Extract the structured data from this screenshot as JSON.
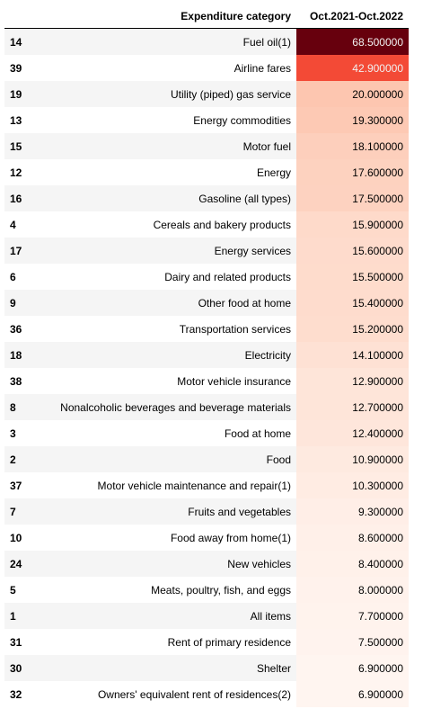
{
  "chart_data": {
    "type": "table",
    "columns": [
      "",
      "Expenditure category",
      "Oct.2021-Oct.2022"
    ],
    "rows": [
      {
        "index": "14",
        "category": "Fuel oil(1)",
        "value": "68.500000"
      },
      {
        "index": "39",
        "category": "Airline fares",
        "value": "42.900000"
      },
      {
        "index": "19",
        "category": "Utility (piped) gas service",
        "value": "20.000000"
      },
      {
        "index": "13",
        "category": "Energy commodities",
        "value": "19.300000"
      },
      {
        "index": "15",
        "category": "Motor fuel",
        "value": "18.100000"
      },
      {
        "index": "12",
        "category": "Energy",
        "value": "17.600000"
      },
      {
        "index": "16",
        "category": "Gasoline (all types)",
        "value": "17.500000"
      },
      {
        "index": "4",
        "category": "Cereals and bakery products",
        "value": "15.900000"
      },
      {
        "index": "17",
        "category": "Energy services",
        "value": "15.600000"
      },
      {
        "index": "6",
        "category": "Dairy and related products",
        "value": "15.500000"
      },
      {
        "index": "9",
        "category": "Other food at home",
        "value": "15.400000"
      },
      {
        "index": "36",
        "category": "Transportation services",
        "value": "15.200000"
      },
      {
        "index": "18",
        "category": "Electricity",
        "value": "14.100000"
      },
      {
        "index": "38",
        "category": "Motor vehicle insurance",
        "value": "12.900000"
      },
      {
        "index": "8",
        "category": "Nonalcoholic beverages and beverage materials",
        "value": "12.700000"
      },
      {
        "index": "3",
        "category": "Food at home",
        "value": "12.400000"
      },
      {
        "index": "2",
        "category": "Food",
        "value": "10.900000"
      },
      {
        "index": "37",
        "category": "Motor vehicle maintenance and repair(1)",
        "value": "10.300000"
      },
      {
        "index": "7",
        "category": "Fruits and vegetables",
        "value": "9.300000"
      },
      {
        "index": "10",
        "category": "Food away from home(1)",
        "value": "8.600000"
      },
      {
        "index": "24",
        "category": "New vehicles",
        "value": "8.400000"
      },
      {
        "index": "5",
        "category": "Meats, poultry, fish, and eggs",
        "value": "8.000000"
      },
      {
        "index": "1",
        "category": "All items",
        "value": "7.700000"
      },
      {
        "index": "31",
        "category": "Rent of primary residence",
        "value": "7.500000"
      },
      {
        "index": "30",
        "category": "Shelter",
        "value": "6.900000"
      },
      {
        "index": "32",
        "category": "Owners' equivalent rent of residences(2)",
        "value": "6.900000"
      }
    ],
    "colormap": {
      "low": "#fff5f0",
      "high": "#67000d",
      "name": "Reds"
    }
  }
}
